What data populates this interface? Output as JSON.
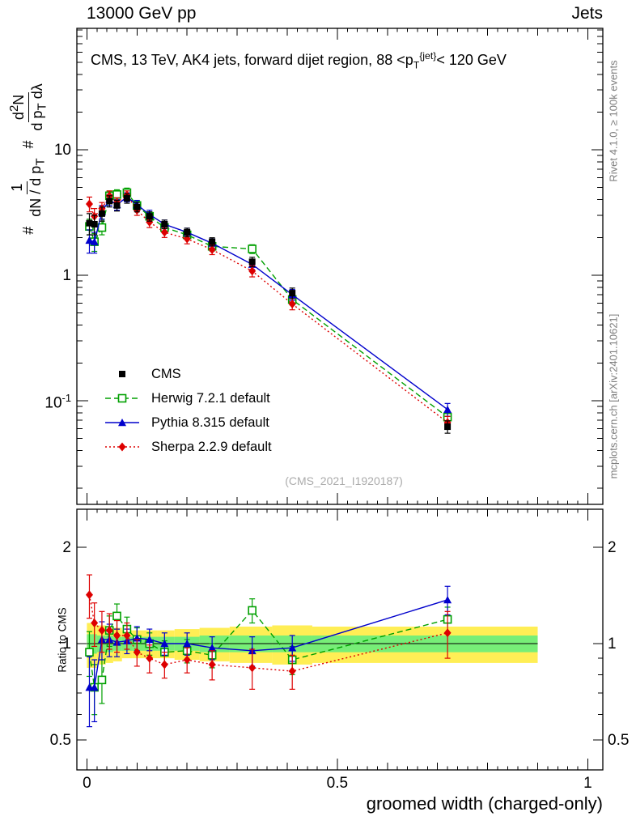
{
  "header": {
    "left": "13000 GeV pp",
    "right": "Jets"
  },
  "title": {
    "a": "CMS, 13 TeV, AK4 jets, forward dijet region, 88 <p",
    "sub": "T",
    "sup": "{jet}",
    "b": "< 120 GeV"
  },
  "y_label": {
    "hash1": "#",
    "f1_num": "1",
    "f1_den_a": "dN / d p",
    "f1_den_sub": "T",
    "hash2": "#",
    "f2_num_a": "d",
    "f2_num_sup": "2",
    "f2_num_b": "N",
    "f2_den_a": "d p",
    "f2_den_sub": "T",
    "f2_den_b": " dλ"
  },
  "watermark": "(CMS_2021_I1920187)",
  "side_notes": {
    "top": "Rivet 4.1.0, ≥ 100k events",
    "bottom": "mcplots.cern.ch [arXiv:2401.10621]"
  },
  "axes": {
    "x_label": "groomed width (charged-only)",
    "ratio_label": "Ratio to CMS",
    "x_ticks": [
      {
        "v": 0,
        "label": "0"
      },
      {
        "v": 0.5,
        "label": "0.5"
      },
      {
        "v": 1,
        "label": "1"
      }
    ],
    "main_y_ticks": [
      {
        "v": 10,
        "label": "10"
      },
      {
        "v": 1,
        "label": "1"
      },
      {
        "v": 0.1,
        "label": "10",
        "sup": "-1"
      }
    ],
    "ratio_y_ticks": [
      {
        "v": 2,
        "label": "2"
      },
      {
        "v": 1,
        "label": "1"
      },
      {
        "v": 0.5,
        "label": "0.5"
      }
    ]
  },
  "chart_data": {
    "type": "line",
    "title": "CMS, 13 TeV, AK4 jets, forward dijet region, 88 < pT^{jet} < 120 GeV",
    "xlabel": "groomed width (charged-only)",
    "ylabel": "# 1/(dN/dpT) # d2N/(dpT dλ)",
    "ratio_ylabel": "Ratio to CMS",
    "y_scale": "log",
    "grid": false,
    "legend_position": "left-center",
    "x_axis_range": [
      -0.02,
      1.03
    ],
    "main_ylim": [
      0.0149,
      93
    ],
    "ratio_ylim": [
      0.403,
      2.63
    ],
    "x": [
      0.005,
      0.015,
      0.03,
      0.045,
      0.06,
      0.08,
      0.1,
      0.125,
      0.155,
      0.2,
      0.25,
      0.33,
      0.41,
      0.72
    ],
    "series": [
      {
        "name": "CMS",
        "color": "#000000",
        "marker": "square-filled",
        "line": "none",
        "values": [
          2.6,
          2.55,
          3.1,
          3.9,
          3.6,
          4.1,
          3.5,
          2.95,
          2.55,
          2.2,
          1.85,
          1.28,
          0.72,
          0.062
        ],
        "errors": [
          0.5,
          0.45,
          0.4,
          0.4,
          0.35,
          0.35,
          0.3,
          0.25,
          0.2,
          0.17,
          0.14,
          0.11,
          0.07,
          0.007
        ]
      },
      {
        "name": "Herwig 7.2.1 default",
        "color": "#00a000",
        "marker": "square-open",
        "line": "dashed",
        "values": [
          2.45,
          1.85,
          2.4,
          4.3,
          4.4,
          4.55,
          3.6,
          2.95,
          2.4,
          2.1,
          1.7,
          1.62,
          0.64,
          0.074
        ],
        "errors": [
          0.35,
          0.3,
          0.3,
          0.4,
          0.4,
          0.4,
          0.3,
          0.25,
          0.2,
          0.17,
          0.14,
          0.13,
          0.06,
          0.008
        ],
        "ratio": [
          0.94,
          0.73,
          0.77,
          1.1,
          1.22,
          1.11,
          1.03,
          1.0,
          0.94,
          0.95,
          0.92,
          1.27,
          0.89,
          1.19
        ],
        "ratio_errors": [
          0.15,
          0.13,
          0.12,
          0.12,
          0.11,
          0.1,
          0.09,
          0.08,
          0.08,
          0.08,
          0.08,
          0.11,
          0.09,
          0.11
        ]
      },
      {
        "name": "Pythia 8.315 default",
        "color": "#0000cc",
        "marker": "triangle-filled",
        "line": "solid",
        "values": [
          1.9,
          1.85,
          3.2,
          4.0,
          3.65,
          4.2,
          3.65,
          3.05,
          2.55,
          2.2,
          1.8,
          1.22,
          0.7,
          0.085
        ],
        "errors": [
          0.4,
          0.35,
          0.4,
          0.4,
          0.35,
          0.35,
          0.3,
          0.25,
          0.2,
          0.17,
          0.15,
          0.11,
          0.07,
          0.01
        ],
        "ratio": [
          0.73,
          0.73,
          1.03,
          1.03,
          1.01,
          1.02,
          1.04,
          1.03,
          1.0,
          1.0,
          0.97,
          0.95,
          0.97,
          1.37
        ],
        "ratio_errors": [
          0.18,
          0.16,
          0.14,
          0.12,
          0.1,
          0.09,
          0.09,
          0.08,
          0.08,
          0.08,
          0.08,
          0.1,
          0.09,
          0.14
        ]
      },
      {
        "name": "Sherpa 2.2.9 default",
        "color": "#dd0000",
        "marker": "diamond-filled",
        "line": "dotted",
        "values": [
          3.7,
          2.95,
          3.4,
          4.3,
          3.8,
          4.35,
          3.3,
          2.65,
          2.2,
          1.95,
          1.6,
          1.08,
          0.59,
          0.067
        ],
        "errors": [
          0.5,
          0.45,
          0.4,
          0.4,
          0.35,
          0.35,
          0.3,
          0.25,
          0.2,
          0.17,
          0.14,
          0.11,
          0.06,
          0.008
        ],
        "ratio": [
          1.42,
          1.16,
          1.1,
          1.1,
          1.06,
          1.06,
          0.94,
          0.9,
          0.86,
          0.89,
          0.86,
          0.84,
          0.82,
          1.08
        ],
        "ratio_errors": [
          0.22,
          0.18,
          0.16,
          0.14,
          0.12,
          0.1,
          0.09,
          0.09,
          0.08,
          0.08,
          0.09,
          0.12,
          0.1,
          0.18
        ]
      }
    ],
    "ratio_band": {
      "edges": [
        0,
        0.01,
        0.02,
        0.0375,
        0.0525,
        0.07,
        0.09,
        0.1125,
        0.14,
        0.175,
        0.225,
        0.285,
        0.37,
        0.45,
        0.9
      ],
      "yellow_halfwidth": [
        0.16,
        0.16,
        0.14,
        0.13,
        0.12,
        0.1,
        0.1,
        0.1,
        0.1,
        0.11,
        0.12,
        0.13,
        0.14,
        0.13
      ],
      "green_halfwidth": [
        0.07,
        0.07,
        0.06,
        0.06,
        0.05,
        0.05,
        0.05,
        0.05,
        0.05,
        0.05,
        0.06,
        0.06,
        0.06,
        0.06
      ],
      "yellow_color": "#ffee55",
      "green_color": "#77ee77"
    }
  }
}
